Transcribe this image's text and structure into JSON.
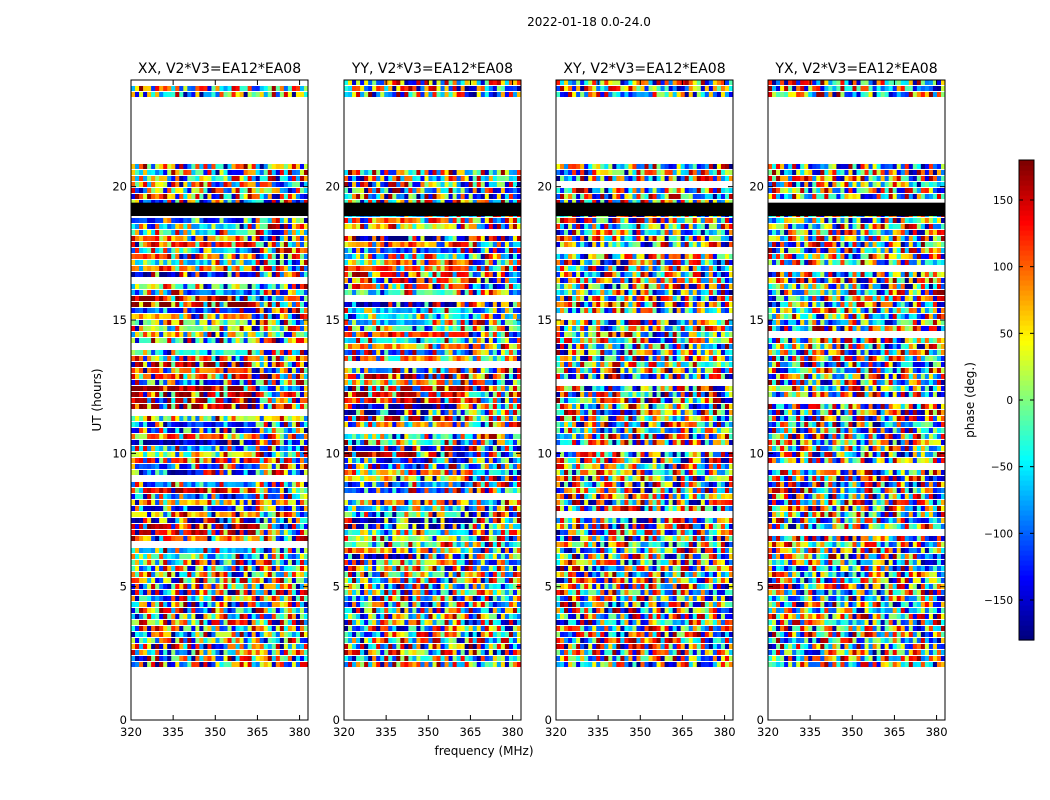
{
  "suptitle": "2022-01-18 0.0-24.0",
  "ylabel": "UT (hours)",
  "xlabel": "frequency (MHz)",
  "colorbar": {
    "label": "phase (deg.)",
    "range": [
      -180,
      180
    ],
    "ticks": [
      "150",
      "100",
      "50",
      "0",
      "−50",
      "−100",
      "−150"
    ],
    "tick_values": [
      150,
      100,
      50,
      0,
      -50,
      -100,
      -150
    ],
    "colormap": "jet"
  },
  "chart_data": {
    "type": "heatmap",
    "x_range_mhz": [
      320,
      383
    ],
    "y_range_hours": [
      0,
      24
    ],
    "x_ticks": [
      320,
      335,
      350,
      365,
      380
    ],
    "x_tick_labels": [
      "320",
      "335",
      "350",
      "365",
      "380"
    ],
    "y_ticks": [
      0,
      5,
      10,
      15,
      20
    ],
    "y_tick_labels": [
      "0",
      "5",
      "10",
      "15",
      "20"
    ],
    "flagged_black_hours": [
      [
        18.9,
        19.4
      ]
    ],
    "gap_hours": [
      [
        0,
        2
      ],
      [
        20.9,
        23.3
      ]
    ],
    "panels": [
      {
        "title": "XX, V2*V3=EA12*EA08",
        "polarization": "XX"
      },
      {
        "title": "YY, V2*V3=EA12*EA08",
        "polarization": "YY"
      },
      {
        "title": "XY, V2*V3=EA12*EA08",
        "polarization": "XY"
      },
      {
        "title": "YX, V2*V3=EA12*EA08",
        "polarization": "YX"
      }
    ]
  }
}
